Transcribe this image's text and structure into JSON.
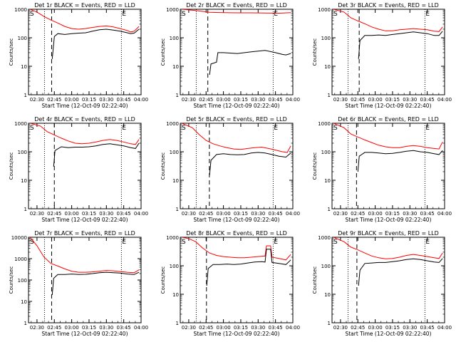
{
  "chart_data": {
    "type": "line",
    "shared": {
      "ylabel": "Counts/sec",
      "xlabel": "Start Time (12-Oct-09 02:22:40)",
      "yscale": "log",
      "ylim": [
        1,
        1000
      ],
      "xlim": [
        "02:22:40",
        "04:00:00"
      ],
      "xticks": [
        "02:30",
        "02:45",
        "03:00",
        "03:15",
        "03:30",
        "03:45",
        "04:00"
      ],
      "yticks_default": [
        "1",
        "10",
        "100",
        "1000"
      ],
      "marker_S": "S",
      "marker_E": "E",
      "dotted_lines": [
        "02:36:30",
        "03:43:00"
      ],
      "dashed_line": "02:42:40",
      "series": [
        {
          "name": "Events",
          "color": "#000000"
        },
        {
          "name": "LLD",
          "color": "#ff0000"
        }
      ]
    },
    "panels": [
      {
        "title": "Det 1r BLACK = Events, RED = LLD",
        "dashed": "02:42:40",
        "ymax": 1000,
        "yticks": [
          "1",
          "10",
          "100",
          "1000"
        ],
        "red": [
          [
            2.4,
            1000
          ],
          [
            2.5,
            800
          ],
          [
            2.6,
            560
          ],
          [
            2.7,
            420
          ],
          [
            2.8,
            330
          ],
          [
            2.9,
            250
          ],
          [
            3.0,
            210
          ],
          [
            3.1,
            200
          ],
          [
            3.2,
            210
          ],
          [
            3.3,
            230
          ],
          [
            3.4,
            250
          ],
          [
            3.5,
            260
          ],
          [
            3.6,
            240
          ],
          [
            3.7,
            210
          ],
          [
            3.8,
            180
          ],
          [
            3.85,
            160
          ],
          [
            3.9,
            170
          ],
          [
            3.97,
            250
          ]
        ],
        "black": [
          [
            2.72,
            18
          ],
          [
            2.75,
            110
          ],
          [
            2.8,
            140
          ],
          [
            2.9,
            130
          ],
          [
            3.0,
            140
          ],
          [
            3.1,
            145
          ],
          [
            3.2,
            150
          ],
          [
            3.3,
            170
          ],
          [
            3.4,
            190
          ],
          [
            3.5,
            200
          ],
          [
            3.6,
            185
          ],
          [
            3.7,
            170
          ],
          [
            3.8,
            150
          ],
          [
            3.85,
            140
          ],
          [
            3.9,
            145
          ],
          [
            3.97,
            200
          ]
        ]
      },
      {
        "title": "Det 2r BLACK = Events, RED = LLD",
        "dashed": "02:46:30",
        "ymax": 1000,
        "yticks": [
          "1",
          "10",
          "100",
          "1000"
        ],
        "red": [
          [
            2.4,
            1000
          ],
          [
            2.6,
            900
          ],
          [
            2.8,
            780
          ],
          [
            3.0,
            760
          ],
          [
            3.2,
            750
          ],
          [
            3.4,
            750
          ],
          [
            3.6,
            740
          ],
          [
            3.8,
            730
          ],
          [
            3.97,
            760
          ]
        ],
        "black": [
          [
            2.8,
            5
          ],
          [
            2.82,
            12
          ],
          [
            2.9,
            14
          ],
          [
            2.92,
            30
          ],
          [
            3.0,
            30
          ],
          [
            3.2,
            28
          ],
          [
            3.4,
            32
          ],
          [
            3.6,
            36
          ],
          [
            3.75,
            30
          ],
          [
            3.85,
            26
          ],
          [
            3.9,
            25
          ],
          [
            3.97,
            28
          ]
        ]
      },
      {
        "title": "Det 3r BLACK = Events, RED = LLD",
        "dashed": "02:46:10",
        "ymax": 1000,
        "yticks": [
          "1",
          "10",
          "100",
          "1000"
        ],
        "red": [
          [
            2.4,
            1000
          ],
          [
            2.55,
            800
          ],
          [
            2.65,
            500
          ],
          [
            2.75,
            390
          ],
          [
            2.85,
            310
          ],
          [
            2.95,
            240
          ],
          [
            3.05,
            200
          ],
          [
            3.15,
            175
          ],
          [
            3.25,
            175
          ],
          [
            3.35,
            190
          ],
          [
            3.45,
            200
          ],
          [
            3.55,
            210
          ],
          [
            3.65,
            200
          ],
          [
            3.75,
            190
          ],
          [
            3.85,
            170
          ],
          [
            3.92,
            165
          ],
          [
            3.97,
            240
          ]
        ],
        "black": [
          [
            2.76,
            18
          ],
          [
            2.78,
            80
          ],
          [
            2.85,
            120
          ],
          [
            2.95,
            120
          ],
          [
            3.05,
            125
          ],
          [
            3.15,
            120
          ],
          [
            3.25,
            130
          ],
          [
            3.35,
            140
          ],
          [
            3.45,
            150
          ],
          [
            3.55,
            160
          ],
          [
            3.65,
            150
          ],
          [
            3.75,
            140
          ],
          [
            3.85,
            120
          ],
          [
            3.92,
            120
          ],
          [
            3.97,
            170
          ]
        ]
      },
      {
        "title": "Det 4r BLACK = Events, RED = LLD",
        "dashed": "02:45:00",
        "ymax": 1000,
        "yticks": [
          "1",
          "10",
          "100",
          "1000"
        ],
        "red": [
          [
            2.4,
            1000
          ],
          [
            2.55,
            800
          ],
          [
            2.65,
            500
          ],
          [
            2.75,
            390
          ],
          [
            2.85,
            300
          ],
          [
            2.95,
            240
          ],
          [
            3.05,
            200
          ],
          [
            3.15,
            190
          ],
          [
            3.25,
            200
          ],
          [
            3.35,
            220
          ],
          [
            3.45,
            250
          ],
          [
            3.55,
            270
          ],
          [
            3.65,
            250
          ],
          [
            3.75,
            220
          ],
          [
            3.85,
            190
          ],
          [
            3.92,
            180
          ],
          [
            3.97,
            270
          ]
        ],
        "black": [
          [
            2.74,
            30
          ],
          [
            2.76,
            110
          ],
          [
            2.85,
            150
          ],
          [
            2.95,
            140
          ],
          [
            3.05,
            145
          ],
          [
            3.15,
            145
          ],
          [
            3.25,
            150
          ],
          [
            3.35,
            160
          ],
          [
            3.45,
            180
          ],
          [
            3.55,
            190
          ],
          [
            3.65,
            175
          ],
          [
            3.75,
            160
          ],
          [
            3.85,
            140
          ],
          [
            3.92,
            130
          ],
          [
            3.97,
            200
          ]
        ]
      },
      {
        "title": "Det 5r BLACK = Events, RED = LLD",
        "dashed": "02:47:50",
        "ymax": 1000,
        "yticks": [
          "1",
          "10",
          "100",
          "1000"
        ],
        "red": [
          [
            2.4,
            1000
          ],
          [
            2.55,
            700
          ],
          [
            2.65,
            400
          ],
          [
            2.75,
            250
          ],
          [
            2.85,
            190
          ],
          [
            2.95,
            160
          ],
          [
            3.05,
            140
          ],
          [
            3.15,
            125
          ],
          [
            3.25,
            120
          ],
          [
            3.35,
            130
          ],
          [
            3.45,
            140
          ],
          [
            3.55,
            145
          ],
          [
            3.65,
            130
          ],
          [
            3.75,
            115
          ],
          [
            3.85,
            100
          ],
          [
            3.92,
            95
          ],
          [
            3.97,
            160
          ]
        ],
        "black": [
          [
            2.8,
            15
          ],
          [
            2.82,
            50
          ],
          [
            2.9,
            80
          ],
          [
            3.0,
            85
          ],
          [
            3.1,
            80
          ],
          [
            3.2,
            78
          ],
          [
            3.3,
            80
          ],
          [
            3.4,
            90
          ],
          [
            3.5,
            95
          ],
          [
            3.6,
            90
          ],
          [
            3.7,
            80
          ],
          [
            3.8,
            70
          ],
          [
            3.9,
            65
          ],
          [
            3.97,
            90
          ]
        ]
      },
      {
        "title": "Det 6r BLACK = Events, RED = LLD",
        "dashed": "02:43:50",
        "ymax": 1000,
        "yticks": [
          "1",
          "10",
          "100",
          "1000"
        ],
        "red": [
          [
            2.4,
            1000
          ],
          [
            2.55,
            700
          ],
          [
            2.65,
            420
          ],
          [
            2.75,
            330
          ],
          [
            2.85,
            260
          ],
          [
            2.95,
            210
          ],
          [
            3.05,
            170
          ],
          [
            3.15,
            150
          ],
          [
            3.25,
            140
          ],
          [
            3.35,
            140
          ],
          [
            3.45,
            155
          ],
          [
            3.55,
            165
          ],
          [
            3.65,
            155
          ],
          [
            3.75,
            140
          ],
          [
            3.85,
            130
          ],
          [
            3.92,
            125
          ],
          [
            3.97,
            220
          ]
        ],
        "black": [
          [
            2.75,
            20
          ],
          [
            2.77,
            70
          ],
          [
            2.85,
            95
          ],
          [
            2.95,
            95
          ],
          [
            3.05,
            90
          ],
          [
            3.15,
            85
          ],
          [
            3.25,
            88
          ],
          [
            3.35,
            95
          ],
          [
            3.45,
            105
          ],
          [
            3.55,
            110
          ],
          [
            3.65,
            100
          ],
          [
            3.75,
            95
          ],
          [
            3.85,
            85
          ],
          [
            3.92,
            80
          ],
          [
            3.97,
            110
          ]
        ]
      },
      {
        "title": "Det 7r BLACK = Events, RED = LLD",
        "dashed": "02:42:40",
        "ymax": 10000,
        "yticks": [
          "1",
          "10",
          "100",
          "1000",
          "10000"
        ],
        "red": [
          [
            2.4,
            10000
          ],
          [
            2.5,
            4000
          ],
          [
            2.6,
            1200
          ],
          [
            2.7,
            600
          ],
          [
            2.8,
            450
          ],
          [
            2.9,
            330
          ],
          [
            3.0,
            260
          ],
          [
            3.1,
            230
          ],
          [
            3.2,
            230
          ],
          [
            3.3,
            240
          ],
          [
            3.4,
            260
          ],
          [
            3.5,
            280
          ],
          [
            3.6,
            270
          ],
          [
            3.7,
            250
          ],
          [
            3.8,
            230
          ],
          [
            3.9,
            220
          ],
          [
            3.97,
            300
          ]
        ],
        "black": [
          [
            2.72,
            20
          ],
          [
            2.74,
            120
          ],
          [
            2.8,
            180
          ],
          [
            2.9,
            180
          ],
          [
            3.0,
            190
          ],
          [
            3.1,
            180
          ],
          [
            3.2,
            185
          ],
          [
            3.3,
            200
          ],
          [
            3.4,
            220
          ],
          [
            3.5,
            230
          ],
          [
            3.6,
            220
          ],
          [
            3.7,
            210
          ],
          [
            3.8,
            190
          ],
          [
            3.9,
            180
          ],
          [
            3.97,
            230
          ]
        ]
      },
      {
        "title": "Det 8r BLACK = Events, RED = LLD",
        "dashed": "02:45:20",
        "ymax": 1000,
        "yticks": [
          "1",
          "10",
          "100",
          "1000"
        ],
        "red": [
          [
            2.4,
            1000
          ],
          [
            2.5,
            900
          ],
          [
            2.6,
            700
          ],
          [
            2.7,
            420
          ],
          [
            2.8,
            280
          ],
          [
            2.9,
            230
          ],
          [
            3.0,
            210
          ],
          [
            3.1,
            200
          ],
          [
            3.2,
            190
          ],
          [
            3.3,
            190
          ],
          [
            3.4,
            200
          ],
          [
            3.5,
            210
          ],
          [
            3.6,
            220
          ],
          [
            3.62,
            500
          ],
          [
            3.68,
            500
          ],
          [
            3.7,
            200
          ],
          [
            3.8,
            180
          ],
          [
            3.9,
            160
          ],
          [
            3.97,
            250
          ]
        ],
        "black": [
          [
            2.76,
            20
          ],
          [
            2.78,
            80
          ],
          [
            2.85,
            110
          ],
          [
            2.95,
            110
          ],
          [
            3.05,
            115
          ],
          [
            3.15,
            110
          ],
          [
            3.25,
            115
          ],
          [
            3.35,
            125
          ],
          [
            3.45,
            135
          ],
          [
            3.55,
            140
          ],
          [
            3.6,
            135
          ],
          [
            3.62,
            380
          ],
          [
            3.68,
            380
          ],
          [
            3.7,
            130
          ],
          [
            3.8,
            120
          ],
          [
            3.9,
            110
          ],
          [
            3.97,
            160
          ]
        ]
      },
      {
        "title": "Det 9r BLACK = Events, RED = LLD",
        "dashed": "02:44:10",
        "ymax": 1000,
        "yticks": [
          "1",
          "10",
          "100",
          "1000"
        ],
        "red": [
          [
            2.4,
            1000
          ],
          [
            2.55,
            700
          ],
          [
            2.65,
            450
          ],
          [
            2.75,
            360
          ],
          [
            2.85,
            280
          ],
          [
            2.95,
            220
          ],
          [
            3.05,
            190
          ],
          [
            3.15,
            175
          ],
          [
            3.25,
            180
          ],
          [
            3.35,
            200
          ],
          [
            3.45,
            230
          ],
          [
            3.55,
            250
          ],
          [
            3.65,
            230
          ],
          [
            3.75,
            210
          ],
          [
            3.85,
            190
          ],
          [
            3.92,
            180
          ],
          [
            3.97,
            280
          ]
        ],
        "black": [
          [
            2.76,
            20
          ],
          [
            2.78,
            70
          ],
          [
            2.85,
            120
          ],
          [
            2.95,
            125
          ],
          [
            3.05,
            130
          ],
          [
            3.15,
            130
          ],
          [
            3.25,
            140
          ],
          [
            3.35,
            150
          ],
          [
            3.45,
            165
          ],
          [
            3.55,
            175
          ],
          [
            3.65,
            165
          ],
          [
            3.75,
            150
          ],
          [
            3.85,
            135
          ],
          [
            3.92,
            130
          ],
          [
            3.97,
            180
          ]
        ]
      }
    ]
  }
}
